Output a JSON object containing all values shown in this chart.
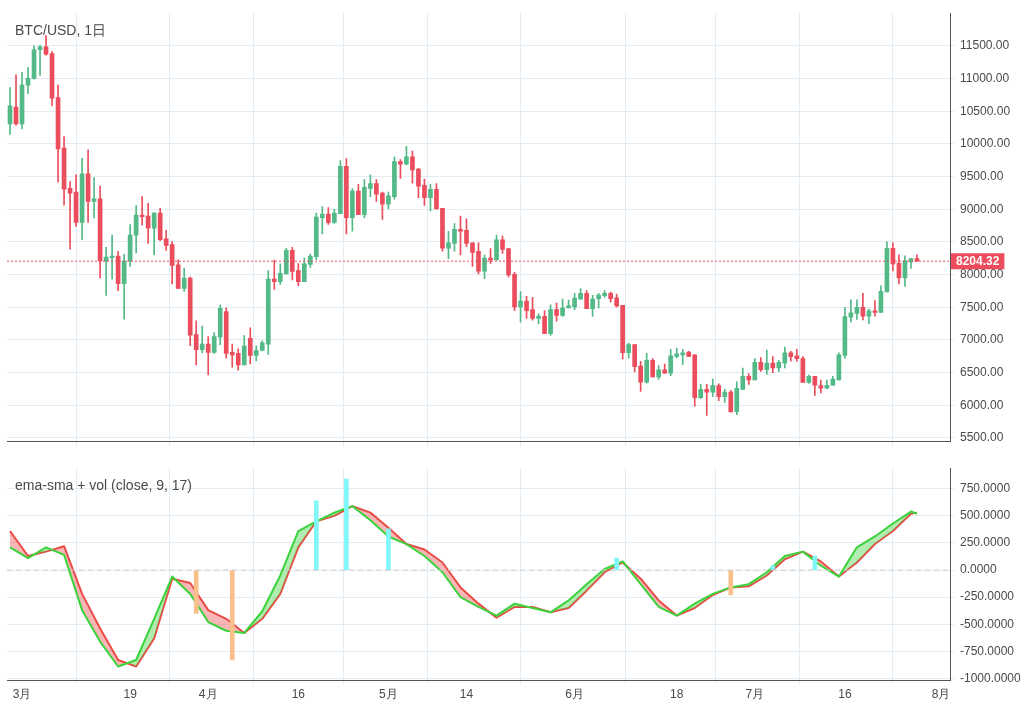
{
  "chart_data": [
    {
      "type": "candlestick",
      "title": "BTC/USD, 1日",
      "grid": true,
      "tick_labels": "y",
      "x": [
        "--02-27",
        "--02-28",
        "--03-01",
        "--03-02",
        "--03-03",
        "--03-04",
        "--03-05",
        "--03-06",
        "--03-07",
        "--03-08",
        "--03-09",
        "--03-10",
        "--03-11",
        "--03-12",
        "--03-13",
        "--03-14",
        "--03-15",
        "--03-16",
        "--03-17",
        "--03-18",
        "--03-19",
        "--03-20",
        "--03-21",
        "--03-22",
        "--03-23",
        "--03-24",
        "--03-25",
        "--03-26",
        "--03-27",
        "--03-28",
        "--03-29",
        "--03-30",
        "--03-31",
        "--04-01",
        "--04-02",
        "--04-03",
        "--04-04",
        "--04-05",
        "--04-06",
        "--04-07",
        "--04-08",
        "--04-09",
        "--04-10",
        "--04-11",
        "--04-12",
        "--04-13",
        "--04-14",
        "--04-15",
        "--04-16",
        "--04-17",
        "--04-18",
        "--04-19",
        "--04-20",
        "--04-21",
        "--04-22",
        "--04-23",
        "--04-24",
        "--04-25",
        "--04-26",
        "--04-27",
        "--04-28",
        "--04-29",
        "--04-30",
        "--05-01",
        "--05-02",
        "--05-03",
        "--05-04",
        "--05-05",
        "--05-06",
        "--05-07",
        "--05-08",
        "--05-09",
        "--05-10",
        "--05-11",
        "--05-12",
        "--05-13",
        "--05-14",
        "--05-15",
        "--05-16",
        "--05-17",
        "--05-18",
        "--05-19",
        "--05-20",
        "--05-21",
        "--05-22",
        "--05-23",
        "--05-24",
        "--05-25",
        "--05-26",
        "--05-27",
        "--05-28",
        "--05-29",
        "--05-30",
        "--05-31",
        "--06-01",
        "--06-02",
        "--06-03",
        "--06-04",
        "--06-05",
        "--06-06",
        "--06-07",
        "--06-08",
        "--06-09",
        "--06-10",
        "--06-11",
        "--06-12",
        "--06-13",
        "--06-14",
        "--06-15",
        "--06-16",
        "--06-17",
        "--06-18",
        "--06-19",
        "--06-20",
        "--06-21",
        "--06-22",
        "--06-23",
        "--06-24",
        "--06-25",
        "--06-26",
        "--06-27",
        "--06-28",
        "--06-29",
        "--06-30",
        "--07-01",
        "--07-02",
        "--07-03",
        "--07-04",
        "--07-05",
        "--07-06",
        "--07-07",
        "--07-08",
        "--07-09",
        "--07-10",
        "--07-11",
        "--07-12",
        "--07-13",
        "--07-14",
        "--07-15",
        "--07-16",
        "--07-17",
        "--07-18",
        "--07-19",
        "--07-20",
        "--07-21",
        "--07-22",
        "--07-23",
        "--07-24",
        "--07-25",
        "--07-26",
        "--07-27",
        "--07-28"
      ],
      "ohlc": [
        [
          10305,
          10861,
          10144,
          10583
        ],
        [
          10564,
          11057,
          10286,
          10305
        ],
        [
          10305,
          11095,
          10227,
          10900
        ],
        [
          10900,
          11168,
          10768,
          11003
        ],
        [
          11003,
          11500,
          10990,
          11441
        ],
        [
          11441,
          11510,
          11046,
          11485
        ],
        [
          11485,
          11656,
          11358,
          11373
        ],
        [
          11383,
          11412,
          10583,
          10700
        ],
        [
          10710,
          10900,
          9412,
          9924
        ],
        [
          9935,
          10110,
          9061,
          9306
        ],
        [
          9320,
          9423,
          8388,
          9247
        ],
        [
          9262,
          9525,
          8735,
          8798
        ],
        [
          8798,
          9778,
          8534,
          9540
        ],
        [
          9540,
          9910,
          8798,
          9120
        ],
        [
          9120,
          9485,
          8867,
          9159
        ],
        [
          9159,
          9354,
          7949,
          8208
        ],
        [
          8208,
          8417,
          7682,
          8267
        ],
        [
          8257,
          8603,
          7930,
          8281
        ],
        [
          8281,
          8354,
          7755,
          7862
        ],
        [
          7862,
          8311,
          7316,
          8208
        ],
        [
          8208,
          8764,
          8125,
          8603
        ],
        [
          8603,
          9057,
          8330,
          8910
        ],
        [
          8910,
          9193,
          8754,
          8886
        ],
        [
          8896,
          9090,
          8476,
          8710
        ],
        [
          8710,
          8950,
          8300,
          8940
        ],
        [
          8940,
          9013,
          8520,
          8535
        ],
        [
          8545,
          8676,
          8369,
          8447
        ],
        [
          8457,
          8505,
          7857,
          8139
        ],
        [
          8150,
          8227,
          7784,
          7788
        ],
        [
          7788,
          8096,
          7740,
          7945
        ],
        [
          7945,
          7960,
          6910,
          7072
        ],
        [
          7082,
          7291,
          6618,
          6852
        ],
        [
          6852,
          7213,
          6799,
          6935
        ],
        [
          6935,
          7052,
          6463,
          6808
        ],
        [
          6808,
          7111,
          6794,
          7052
        ],
        [
          7042,
          7535,
          6925,
          7481
        ],
        [
          7433,
          7491,
          6720,
          6794
        ],
        [
          6808,
          6935,
          6584,
          6770
        ],
        [
          6794,
          6862,
          6536,
          6618
        ],
        [
          6618,
          7067,
          6618,
          6906
        ],
        [
          7023,
          7184,
          6633,
          6764
        ],
        [
          6764,
          6910,
          6677,
          6838
        ],
        [
          6838,
          6984,
          6830,
          6955
        ],
        [
          6935,
          8062,
          6779,
          7930
        ],
        [
          7930,
          8223,
          7774,
          7891
        ],
        [
          7891,
          8164,
          7847,
          8018
        ],
        [
          8008,
          8403,
          8008,
          8369
        ],
        [
          8369,
          8417,
          7916,
          8047
        ],
        [
          8062,
          8169,
          7828,
          7891
        ],
        [
          7891,
          8257,
          7891,
          8164
        ],
        [
          8155,
          8315,
          8110,
          8281
        ],
        [
          8272,
          8940,
          8227,
          8881
        ],
        [
          8871,
          9042,
          8622,
          8925
        ],
        [
          8925,
          9023,
          8769,
          8798
        ],
        [
          8798,
          8998,
          8783,
          8940
        ],
        [
          8930,
          9744,
          8930,
          9657
        ],
        [
          9657,
          9774,
          8622,
          8871
        ],
        [
          8871,
          9315,
          8662,
          9276
        ],
        [
          9276,
          9379,
          8915,
          8915
        ],
        [
          8915,
          9452,
          8867,
          9335
        ],
        [
          9320,
          9525,
          9193,
          9393
        ],
        [
          9393,
          9452,
          9120,
          9232
        ],
        [
          9247,
          9262,
          8842,
          9076
        ],
        [
          9076,
          9262,
          9003,
          9203
        ],
        [
          9193,
          9803,
          9155,
          9730
        ],
        [
          9730,
          9759,
          9471,
          9690
        ],
        [
          9690,
          9964,
          9676,
          9803
        ],
        [
          9803,
          9891,
          9398,
          9603
        ],
        [
          9613,
          9627,
          9178,
          9354
        ],
        [
          9364,
          9462,
          9057,
          9178
        ],
        [
          9178,
          9379,
          8974,
          9306
        ],
        [
          9306,
          9393,
          9003,
          9003
        ],
        [
          9013,
          9013,
          8359,
          8403
        ],
        [
          8403,
          8662,
          8242,
          8486
        ],
        [
          8476,
          8779,
          8359,
          8691
        ],
        [
          8691,
          8896,
          8300,
          8662
        ],
        [
          8676,
          8852,
          8428,
          8476
        ],
        [
          8486,
          8486,
          8125,
          8340
        ],
        [
          8354,
          8486,
          8008,
          8052
        ],
        [
          8052,
          8296,
          7935,
          8252
        ],
        [
          8252,
          8398,
          8169,
          8223
        ],
        [
          8223,
          8603,
          8223,
          8530
        ],
        [
          8530,
          8588,
          8325,
          8384
        ],
        [
          8398,
          8398,
          7964,
          7993
        ],
        [
          8003,
          8033,
          7448,
          7506
        ],
        [
          7506,
          7740,
          7272,
          7594
        ],
        [
          7594,
          7667,
          7330,
          7448
        ],
        [
          7462,
          7652,
          7301,
          7330
        ],
        [
          7330,
          7404,
          7243,
          7364
        ],
        [
          7360,
          7448,
          7096,
          7096
        ],
        [
          7096,
          7535,
          7067,
          7462
        ],
        [
          7462,
          7565,
          7287,
          7374
        ],
        [
          7374,
          7623,
          7360,
          7491
        ],
        [
          7491,
          7608,
          7491,
          7521
        ],
        [
          7506,
          7711,
          7462,
          7638
        ],
        [
          7623,
          7784,
          7623,
          7711
        ],
        [
          7711,
          7755,
          7477,
          7477
        ],
        [
          7477,
          7682,
          7360,
          7623
        ],
        [
          7629,
          7711,
          7491,
          7686
        ],
        [
          7676,
          7755,
          7650,
          7714
        ],
        [
          7714,
          7730,
          7576,
          7629
        ],
        [
          7643,
          7700,
          7500,
          7519
        ],
        [
          7529,
          7529,
          6705,
          6805
        ],
        [
          6805,
          6952,
          6719,
          6929
        ],
        [
          6929,
          6929,
          6510,
          6590
        ],
        [
          6600,
          6671,
          6210,
          6352
        ],
        [
          6352,
          6795,
          6338,
          6686
        ],
        [
          6686,
          6714,
          6433,
          6433
        ],
        [
          6433,
          6605,
          6395,
          6543
        ],
        [
          6543,
          6629,
          6490,
          6490
        ],
        [
          6490,
          6857,
          6452,
          6757
        ],
        [
          6748,
          6876,
          6724,
          6786
        ],
        [
          6771,
          6857,
          6619,
          6800
        ],
        [
          6814,
          6824,
          6748,
          6748
        ],
        [
          6771,
          6771,
          5986,
          6114
        ],
        [
          6114,
          6319,
          6100,
          6243
        ],
        [
          6243,
          6319,
          5843,
          6200
        ],
        [
          6200,
          6400,
          6129,
          6300
        ],
        [
          6300,
          6329,
          6071,
          6129
        ],
        [
          6129,
          6243,
          6043,
          6200
        ],
        [
          6200,
          6229,
          5890,
          5900
        ],
        [
          5900,
          6357,
          5857,
          6257
        ],
        [
          6243,
          6567,
          6243,
          6443
        ],
        [
          6443,
          6486,
          6319,
          6386
        ],
        [
          6386,
          6714,
          6386,
          6657
        ],
        [
          6657,
          6729,
          6519,
          6543
        ],
        [
          6543,
          6843,
          6476,
          6643
        ],
        [
          6643,
          6743,
          6500,
          6571
        ],
        [
          6571,
          6686,
          6514,
          6657
        ],
        [
          6643,
          6890,
          6571,
          6800
        ],
        [
          6800,
          6824,
          6676,
          6743
        ],
        [
          6757,
          6857,
          6671,
          6714
        ],
        [
          6714,
          6743,
          6348,
          6348
        ],
        [
          6348,
          6462,
          6333,
          6443
        ],
        [
          6443,
          6443,
          6148,
          6305
        ],
        [
          6300,
          6386,
          6190,
          6262
        ],
        [
          6262,
          6386,
          6248,
          6305
        ],
        [
          6305,
          6443,
          6305,
          6400
        ],
        [
          6386,
          6800,
          6386,
          6771
        ],
        [
          6762,
          7500,
          6719,
          7357
        ],
        [
          7348,
          7614,
          7276,
          7414
        ],
        [
          7405,
          7614,
          7314,
          7500
        ],
        [
          7500,
          7714,
          7305,
          7362
        ],
        [
          7362,
          7471,
          7248,
          7443
        ],
        [
          7443,
          7600,
          7362,
          7419
        ],
        [
          7419,
          7829,
          7419,
          7743
        ],
        [
          7733,
          8500,
          7733,
          8400
        ],
        [
          8400,
          8486,
          8057,
          8162
        ],
        [
          8171,
          8300,
          7857,
          7948
        ],
        [
          7948,
          8286,
          7819,
          8210
        ],
        [
          8195,
          8243,
          8095,
          8243
        ],
        [
          8243,
          8300,
          8204.32,
          8204.32
        ]
      ],
      "xlim": [
        "--02-26T12:00",
        "--08-02T12:00"
      ],
      "xticks": [
        {
          "value": "--03-01",
          "label": null
        },
        {
          "value": "--03-19",
          "label": null
        },
        {
          "value": "--04-01",
          "label": null
        },
        {
          "value": "--04-16",
          "label": null
        },
        {
          "value": "--05-01",
          "label": null
        },
        {
          "value": "--05-14",
          "label": null
        },
        {
          "value": "--06-01",
          "label": null
        },
        {
          "value": "--06-18",
          "label": null
        },
        {
          "value": "--07-01",
          "label": null
        },
        {
          "value": "--07-16",
          "label": null
        },
        {
          "value": "--08-01",
          "label": null
        }
      ],
      "ylim": [
        5440,
        12000
      ],
      "yticks": [
        {
          "value": 5500,
          "label": "5500.00"
        },
        {
          "value": 6000,
          "label": "6000.00"
        },
        {
          "value": 6500,
          "label": "6500.00"
        },
        {
          "value": 7000,
          "label": "7000.00"
        },
        {
          "value": 7500,
          "label": "7500.00"
        },
        {
          "value": 8000,
          "label": "8000.00"
        },
        {
          "value": 8500,
          "label": "8500.00"
        },
        {
          "value": 9000,
          "label": "9000.00"
        },
        {
          "value": 9500,
          "label": "9500.00"
        },
        {
          "value": 10000,
          "label": "10000.00"
        },
        {
          "value": 10500,
          "label": "10500.00"
        },
        {
          "value": 11000,
          "label": "11000.00"
        },
        {
          "value": 11500,
          "label": "11500.00"
        }
      ],
      "ref_lines": [
        {
          "axis": "y",
          "value": 8204.32,
          "label": "8204.32",
          "color": "#eb4d5c",
          "line_style": "dotted"
        }
      ]
    },
    {
      "type": "line",
      "title": "ema-sma + vol (close, 9, 17)",
      "grid": true,
      "marker": "none",
      "xlim": [
        "--02-26T12:00",
        "--08-02T12:00"
      ],
      "xticks": [
        {
          "value": "--03-01",
          "label": "3月"
        },
        {
          "value": "--03-19",
          "label": "19"
        },
        {
          "value": "--04-01",
          "label": "4月"
        },
        {
          "value": "--04-16",
          "label": "16"
        },
        {
          "value": "--05-01",
          "label": "5月"
        },
        {
          "value": "--05-14",
          "label": "14"
        },
        {
          "value": "--06-01",
          "label": "6月"
        },
        {
          "value": "--06-18",
          "label": "18"
        },
        {
          "value": "--07-01",
          "label": "7月"
        },
        {
          "value": "--07-16",
          "label": "16"
        },
        {
          "value": "--08-01",
          "label": "8月"
        }
      ],
      "ylim": [
        -1020,
        940
      ],
      "yticks": [
        {
          "value": -1000,
          "label": "-1000.0000"
        },
        {
          "value": -750,
          "label": "-750.0000"
        },
        {
          "value": -500,
          "label": "-500.0000"
        },
        {
          "value": -250,
          "label": "-250.0000"
        },
        {
          "value": 0,
          "label": "0.0000"
        },
        {
          "value": 250,
          "label": "250.0000"
        },
        {
          "value": 500,
          "label": "500.0000"
        },
        {
          "value": 750,
          "label": "750.0000"
        }
      ],
      "ref_lines": [
        {
          "axis": "y",
          "value": 0,
          "color": "#c8ccd0",
          "line_style": "dashed"
        }
      ],
      "series": [
        {
          "type": "bar",
          "x": [
            "--03-30",
            "--04-05",
            "--04-19",
            "--04-24",
            "--05-01",
            "--06-08",
            "--06-27",
            "--07-04",
            "--07-11"
          ],
          "values": [
            -400,
            -830,
            640,
            840,
            380,
            110,
            -230,
            40,
            130
          ],
          "colors": [
            "#f9c08c",
            "#f9c08c",
            "#80f8f8",
            "#80f8f8",
            "#80f8f8",
            "#80f8f8",
            "#f9c08c",
            "#80f8f8",
            "#80f8f8"
          ]
        },
        {
          "type": "line",
          "color": "#3cd23c",
          "x": [
            "--02-27",
            "--03-02",
            "--03-05",
            "--03-08",
            "--03-11",
            "--03-14",
            "--03-17",
            "--03-20",
            "--03-23",
            "--03-26",
            "--03-29",
            "--04-01",
            "--04-04",
            "--04-07",
            "--04-10",
            "--04-13",
            "--04-16",
            "--04-19",
            "--04-22",
            "--04-25",
            "--04-28",
            "--05-01",
            "--05-04",
            "--05-07",
            "--05-10",
            "--05-13",
            "--05-16",
            "--05-19",
            "--05-22",
            "--05-25",
            "--05-28",
            "--05-31",
            "--06-03",
            "--06-06",
            "--06-09",
            "--06-12",
            "--06-15",
            "--06-18",
            "--06-21",
            "--06-24",
            "--06-27",
            "--06-30",
            "--07-03",
            "--07-06",
            "--07-09",
            "--07-12",
            "--07-15",
            "--07-18",
            "--07-21",
            "--07-24",
            "--07-27",
            "--07-28"
          ],
          "values": [
            210,
            110,
            210,
            140,
            -370,
            -660,
            -890,
            -830,
            -450,
            -60,
            -220,
            -480,
            -560,
            -580,
            -380,
            -50,
            360,
            450,
            530,
            590,
            460,
            310,
            240,
            130,
            -20,
            -250,
            -340,
            -420,
            -310,
            -350,
            -390,
            -280,
            -130,
            10,
            80,
            -130,
            -340,
            -420,
            -310,
            -220,
            -160,
            -130,
            -20,
            130,
            170,
            40,
            -60,
            210,
            310,
            430,
            540,
            520
          ]
        },
        {
          "type": "line",
          "color": "#f04848",
          "x": [
            "--02-27",
            "--03-02",
            "--03-05",
            "--03-08",
            "--03-11",
            "--03-14",
            "--03-17",
            "--03-20",
            "--03-23",
            "--03-26",
            "--03-29",
            "--04-01",
            "--04-04",
            "--04-07",
            "--04-10",
            "--04-13",
            "--04-16",
            "--04-19",
            "--04-22",
            "--04-25",
            "--04-28",
            "--05-01",
            "--05-04",
            "--05-07",
            "--05-10",
            "--05-13",
            "--05-16",
            "--05-19",
            "--05-22",
            "--05-25",
            "--05-28",
            "--05-31",
            "--06-03",
            "--06-06",
            "--06-09",
            "--06-12",
            "--06-15",
            "--06-18",
            "--06-21",
            "--06-24",
            "--06-27",
            "--06-30",
            "--07-03",
            "--07-06",
            "--07-09",
            "--07-12",
            "--07-15",
            "--07-18",
            "--07-21",
            "--07-24",
            "--07-27",
            "--07-28"
          ],
          "values": [
            360,
            130,
            170,
            220,
            -220,
            -540,
            -830,
            -890,
            -630,
            -80,
            -120,
            -370,
            -450,
            -580,
            -450,
            -220,
            210,
            450,
            500,
            590,
            530,
            390,
            240,
            190,
            70,
            -160,
            -310,
            -440,
            -340,
            -340,
            -390,
            -350,
            -190,
            -20,
            70,
            -80,
            -280,
            -420,
            -350,
            -230,
            -160,
            -150,
            -50,
            100,
            170,
            80,
            -60,
            70,
            240,
            360,
            520,
            530
          ]
        }
      ]
    }
  ]
}
